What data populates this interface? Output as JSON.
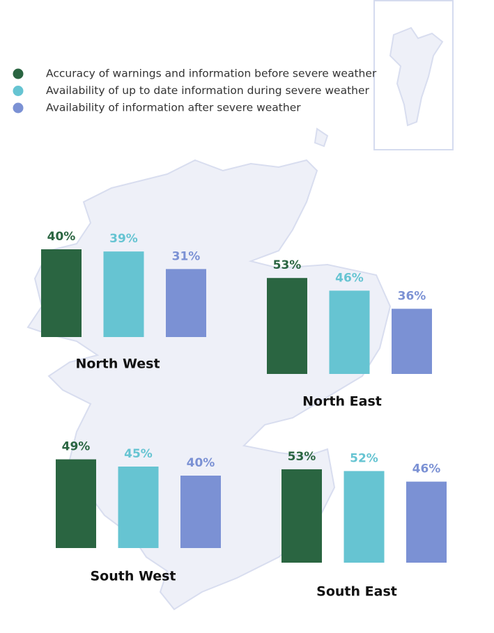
{
  "chart_data": {
    "type": "bar",
    "categories": [
      "North West",
      "North East",
      "South West",
      "South East"
    ],
    "series": [
      {
        "name": "Accuracy of warnings and information before severe weather",
        "color": "#2a6541",
        "values": [
          40,
          53,
          49,
          53
        ],
        "value_labels": [
          "40%",
          "53%",
          "49%",
          "53%"
        ]
      },
      {
        "name": "Availability of up to date information during severe weather",
        "color": "#66c4d2",
        "values": [
          39,
          46,
          45,
          52
        ],
        "value_labels": [
          "39%",
          "46%",
          "45%",
          "52%"
        ]
      },
      {
        "name": "Availability of information after severe weather",
        "color": "#7b91d4",
        "values": [
          31,
          36,
          40,
          46
        ],
        "value_labels": [
          "31%",
          "36%",
          "40%",
          "46%"
        ]
      }
    ]
  }
}
